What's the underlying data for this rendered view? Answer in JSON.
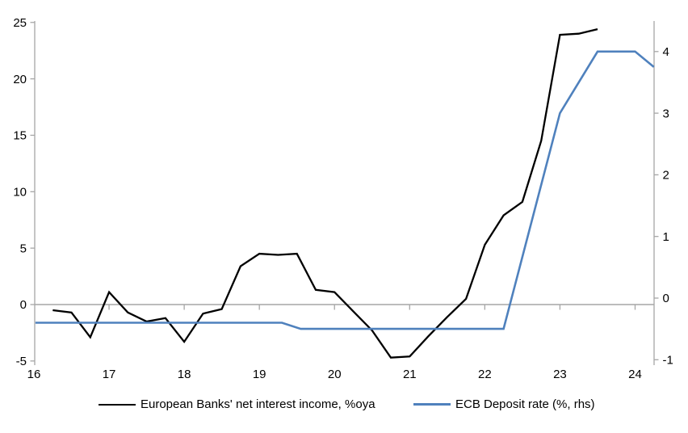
{
  "chart_data": {
    "type": "line",
    "title": "",
    "x_tick_labels": [
      "16",
      "17",
      "18",
      "19",
      "20",
      "21",
      "22",
      "23",
      "24"
    ],
    "left_axis": {
      "tick_labels": [
        25,
        20,
        15,
        10,
        5,
        0,
        -5
      ],
      "range": [
        -5.4,
        25.1
      ]
    },
    "right_axis": {
      "tick_labels": [
        4,
        3,
        2,
        1,
        0,
        -1
      ],
      "range": [
        -1.1,
        4.5
      ]
    },
    "x_range": [
      16,
      24.26
    ],
    "grid": "zero-line-only",
    "legend_position": "bottom",
    "series": [
      {
        "name": "European Banks' net interest income, %oya",
        "color": "#000000",
        "axis": "left",
        "points": [
          [
            16.25,
            -0.5
          ],
          [
            16.5,
            -0.7
          ],
          [
            16.75,
            -2.9
          ],
          [
            17.0,
            1.1
          ],
          [
            17.25,
            -0.7
          ],
          [
            17.5,
            -1.5
          ],
          [
            17.75,
            -1.2
          ],
          [
            18.0,
            -3.3
          ],
          [
            18.25,
            -0.8
          ],
          [
            18.5,
            -0.4
          ],
          [
            18.75,
            3.4
          ],
          [
            19.0,
            4.5
          ],
          [
            19.25,
            4.4
          ],
          [
            19.5,
            4.5
          ],
          [
            19.75,
            1.3
          ],
          [
            20.0,
            1.1
          ],
          [
            20.25,
            -0.6
          ],
          [
            20.5,
            -2.3
          ],
          [
            20.75,
            -4.7
          ],
          [
            21.0,
            -4.6
          ],
          [
            21.25,
            -2.8
          ],
          [
            21.5,
            -1.1
          ],
          [
            21.75,
            0.5
          ],
          [
            22.0,
            5.3
          ],
          [
            22.25,
            7.9
          ],
          [
            22.5,
            9.1
          ],
          [
            22.75,
            14.5
          ],
          [
            23.0,
            23.9
          ],
          [
            23.25,
            24.0
          ],
          [
            23.5,
            24.4
          ]
        ]
      },
      {
        "name": "ECB Deposit rate (%, rhs)",
        "color": "#4f81bd",
        "axis": "right",
        "points": [
          [
            16.02,
            -0.4
          ],
          [
            19.3,
            -0.4
          ],
          [
            19.55,
            -0.5
          ],
          [
            22.25,
            -0.5
          ],
          [
            23.0,
            3.0
          ],
          [
            23.5,
            4.0
          ],
          [
            24.0,
            4.0
          ],
          [
            24.25,
            3.75
          ]
        ]
      }
    ]
  },
  "colors": {
    "axis_gray": "#a6a6a6",
    "series_nii": "#000000",
    "series_ecb": "#4f81bd",
    "background": "#ffffff"
  }
}
